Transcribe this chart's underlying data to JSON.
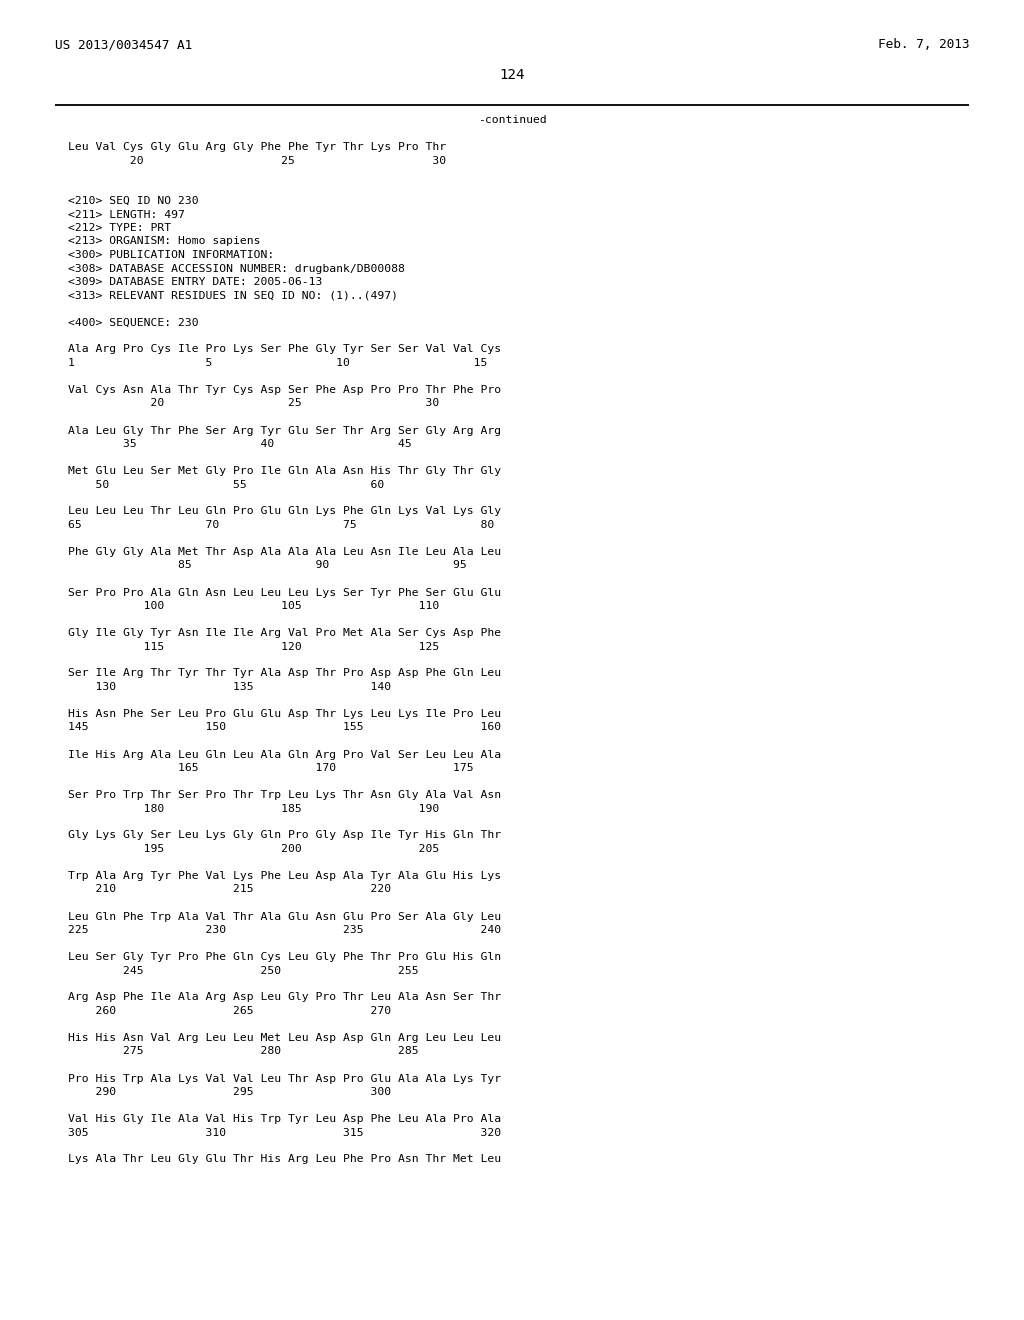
{
  "header_left": "US 2013/0034547 A1",
  "header_right": "Feb. 7, 2013",
  "page_number": "124",
  "continued_text": "-continued",
  "background_color": "#ffffff",
  "text_color": "#000000",
  "font_size": 8.2,
  "header_font_size": 9.2,
  "content_lines": [
    "Leu Val Cys Gly Glu Arg Gly Phe Phe Tyr Thr Lys Pro Thr",
    "         20                    25                    30",
    "",
    "",
    "<210> SEQ ID NO 230",
    "<211> LENGTH: 497",
    "<212> TYPE: PRT",
    "<213> ORGANISM: Homo sapiens",
    "<300> PUBLICATION INFORMATION:",
    "<308> DATABASE ACCESSION NUMBER: drugbank/DB00088",
    "<309> DATABASE ENTRY DATE: 2005-06-13",
    "<313> RELEVANT RESIDUES IN SEQ ID NO: (1)..(497)",
    "",
    "<400> SEQUENCE: 230",
    "",
    "Ala Arg Pro Cys Ile Pro Lys Ser Phe Gly Tyr Ser Ser Val Val Cys",
    "1                   5                  10                  15",
    "",
    "Val Cys Asn Ala Thr Tyr Cys Asp Ser Phe Asp Pro Pro Thr Phe Pro",
    "            20                  25                  30",
    "",
    "Ala Leu Gly Thr Phe Ser Arg Tyr Glu Ser Thr Arg Ser Gly Arg Arg",
    "        35                  40                  45",
    "",
    "Met Glu Leu Ser Met Gly Pro Ile Gln Ala Asn His Thr Gly Thr Gly",
    "    50                  55                  60",
    "",
    "Leu Leu Leu Thr Leu Gln Pro Glu Gln Lys Phe Gln Lys Val Lys Gly",
    "65                  70                  75                  80",
    "",
    "Phe Gly Gly Ala Met Thr Asp Ala Ala Ala Leu Asn Ile Leu Ala Leu",
    "                85                  90                  95",
    "",
    "Ser Pro Pro Ala Gln Asn Leu Leu Leu Lys Ser Tyr Phe Ser Glu Glu",
    "           100                 105                 110",
    "",
    "Gly Ile Gly Tyr Asn Ile Ile Arg Val Pro Met Ala Ser Cys Asp Phe",
    "           115                 120                 125",
    "",
    "Ser Ile Arg Thr Tyr Thr Tyr Ala Asp Thr Pro Asp Asp Phe Gln Leu",
    "    130                 135                 140",
    "",
    "His Asn Phe Ser Leu Pro Glu Glu Asp Thr Lys Leu Lys Ile Pro Leu",
    "145                 150                 155                 160",
    "",
    "Ile His Arg Ala Leu Gln Leu Ala Gln Arg Pro Val Ser Leu Leu Ala",
    "                165                 170                 175",
    "",
    "Ser Pro Trp Thr Ser Pro Thr Trp Leu Lys Thr Asn Gly Ala Val Asn",
    "           180                 185                 190",
    "",
    "Gly Lys Gly Ser Leu Lys Gly Gln Pro Gly Asp Ile Tyr His Gln Thr",
    "           195                 200                 205",
    "",
    "Trp Ala Arg Tyr Phe Val Lys Phe Leu Asp Ala Tyr Ala Glu His Lys",
    "    210                 215                 220",
    "",
    "Leu Gln Phe Trp Ala Val Thr Ala Glu Asn Glu Pro Ser Ala Gly Leu",
    "225                 230                 235                 240",
    "",
    "Leu Ser Gly Tyr Pro Phe Gln Cys Leu Gly Phe Thr Pro Glu His Gln",
    "        245                 250                 255",
    "",
    "Arg Asp Phe Ile Ala Arg Asp Leu Gly Pro Thr Leu Ala Asn Ser Thr",
    "    260                 265                 270",
    "",
    "His His Asn Val Arg Leu Leu Met Leu Asp Asp Gln Arg Leu Leu Leu",
    "        275                 280                 285",
    "",
    "Pro His Trp Ala Lys Val Val Leu Thr Asp Pro Glu Ala Ala Lys Tyr",
    "    290                 295                 300",
    "",
    "Val His Gly Ile Ala Val His Trp Tyr Leu Asp Phe Leu Ala Pro Ala",
    "305                 310                 315                 320",
    "",
    "Lys Ala Thr Leu Gly Glu Thr His Arg Leu Phe Pro Asn Thr Met Leu"
  ]
}
